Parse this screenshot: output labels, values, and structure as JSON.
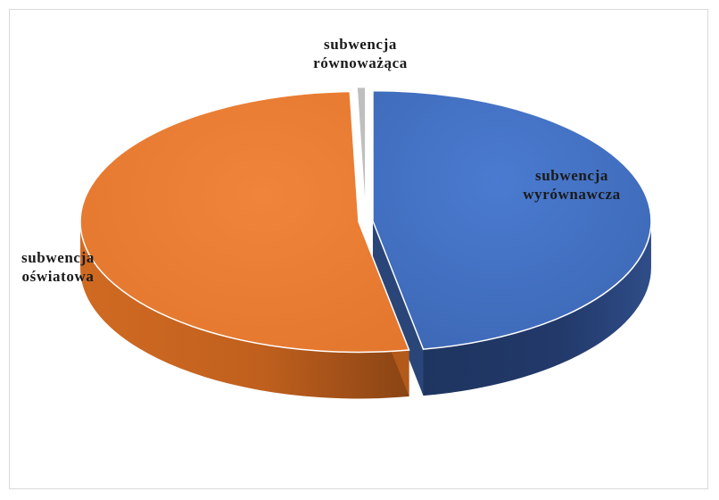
{
  "chart_data": {
    "type": "pie",
    "style": "3d",
    "title": "",
    "slices": [
      {
        "label_lines": [
          "subwencja",
          "wyrównawcza"
        ],
        "value": 47.1,
        "color": "#4472c4"
      },
      {
        "label_lines": [
          "subwencja",
          "oświatowa"
        ],
        "value": 52.4,
        "color": "#ed7d31"
      },
      {
        "label_lines": [
          "subwencja",
          "równoważąca"
        ],
        "value": 0.5,
        "color": "#a5a5a5"
      }
    ]
  }
}
